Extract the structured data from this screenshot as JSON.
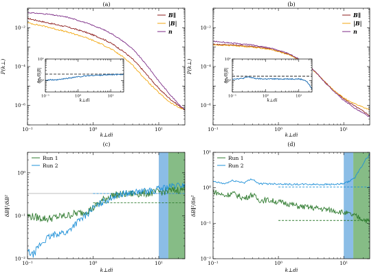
{
  "colors": {
    "red": "#8B1A1A",
    "orange": "#F2A60C",
    "purple": "#7B2A85",
    "dkgreen": "#2E7A2E",
    "ltblue": "#1E90D8",
    "inset_blue": "#1F6FB5",
    "band_blue": "#8BBDE6",
    "band_green": "#86BC86",
    "hline_gray": "#999999"
  },
  "chart_data": [
    {
      "panel": "(a)",
      "type": "line",
      "xscale": "log",
      "yscale": "log",
      "xlim": [
        0.1,
        25
      ],
      "ylim": [
        1e-07,
        0.1
      ],
      "xlabel": "k⊥di",
      "ylabel": "P(k⊥)",
      "legend": "top-right",
      "xticks": [
        "10⁻¹",
        "10⁰",
        "10¹"
      ],
      "yticks": [
        "10⁻²",
        "10⁻⁴",
        "10⁻⁶"
      ],
      "series": [
        {
          "name": "B∥",
          "color": "red",
          "x": [
            0.1,
            0.2,
            0.4,
            0.7,
            1,
            1.5,
            2,
            3,
            4,
            5,
            7,
            10,
            15,
            20,
            25
          ],
          "y": [
            0.03,
            0.018,
            0.011,
            0.0065,
            0.0042,
            0.0024,
            0.0014,
            0.00055,
            0.00024,
            0.00011,
            3e-05,
            7.5e-06,
            2.1e-06,
            1e-06,
            6e-07
          ]
        },
        {
          "name": "|B|",
          "color": "orange",
          "x": [
            0.1,
            0.2,
            0.4,
            0.7,
            1,
            1.5,
            2,
            3,
            4,
            5,
            7,
            10,
            15,
            20,
            25
          ],
          "y": [
            0.018,
            0.011,
            0.006,
            0.0035,
            0.0022,
            0.0012,
            0.0007,
            0.00028,
            0.00012,
            5e-05,
            1.5e-05,
            4.5e-06,
            1.4e-06,
            8e-07,
            6e-07
          ]
        },
        {
          "name": "n",
          "color": "purple",
          "x": [
            0.1,
            0.2,
            0.4,
            0.7,
            1,
            1.5,
            2,
            3,
            4,
            5,
            7,
            10,
            15,
            20,
            25
          ],
          "y": [
            0.06,
            0.05,
            0.035,
            0.02,
            0.013,
            0.0075,
            0.0045,
            0.0018,
            0.0008,
            0.00035,
            9e-05,
            1.8e-05,
            3.5e-06,
            1.2e-06,
            6e-07
          ]
        }
      ],
      "inset": {
        "ylabel": "δnᵢ/δ|B|",
        "xlabel": "k⊥di",
        "yticks": [
          "10¹",
          "10⁰"
        ],
        "xticks": [
          "10⁻¹",
          "10⁰",
          "10¹"
        ],
        "hline": 2.0,
        "xlim": [
          0.1,
          25
        ],
        "ylim": [
          0.3,
          10
        ],
        "x": [
          0.1,
          0.15,
          0.2,
          0.3,
          0.5,
          0.8,
          1,
          1.5,
          2,
          3,
          5,
          8,
          10,
          15,
          20,
          25
        ],
        "y": [
          1.05,
          1.1,
          1.05,
          1.15,
          1.3,
          1.45,
          1.5,
          1.6,
          1.7,
          1.75,
          1.8,
          1.85,
          1.9,
          1.9,
          1.95,
          2.0
        ]
      }
    },
    {
      "panel": "(b)",
      "type": "line",
      "xscale": "log",
      "yscale": "log",
      "xlim": [
        0.1,
        25
      ],
      "ylim": [
        1e-07,
        0.1
      ],
      "xlabel": "k⊥di",
      "ylabel": "P(k⊥)",
      "legend": "top-right",
      "xticks": [
        "10⁻¹",
        "10⁰",
        "10¹"
      ],
      "yticks": [
        "10⁻²",
        "10⁻⁴",
        "10⁻⁶"
      ],
      "series": [
        {
          "name": "B∥",
          "color": "red",
          "x": [
            0.1,
            0.2,
            0.4,
            0.7,
            1,
            1.5,
            2,
            3,
            4,
            5,
            7,
            10,
            15,
            20,
            25
          ],
          "y": [
            0.0014,
            0.0013,
            0.0011,
            0.00085,
            0.00062,
            0.0004,
            0.00025,
            0.0001,
            4e-05,
            1.8e-05,
            6e-06,
            2.2e-06,
            9e-07,
            5e-07,
            3e-07
          ]
        },
        {
          "name": "|B|",
          "color": "orange",
          "x": [
            0.1,
            0.2,
            0.4,
            0.7,
            1,
            1.5,
            2,
            3,
            4,
            5,
            7,
            10,
            15,
            20,
            25
          ],
          "y": [
            0.0013,
            0.0012,
            0.001,
            0.0008,
            0.0006,
            0.00039,
            0.00024,
            9.5e-05,
            4e-05,
            1.8e-05,
            6e-06,
            2.4e-06,
            1.2e-06,
            8e-07,
            6e-07
          ]
        },
        {
          "name": "n",
          "color": "purple",
          "x": [
            0.1,
            0.2,
            0.4,
            0.7,
            1,
            1.5,
            2,
            3,
            4,
            5,
            7,
            10,
            15,
            20,
            25
          ],
          "y": [
            0.002,
            0.0016,
            0.0013,
            0.00095,
            0.0007,
            0.00043,
            0.00026,
            0.0001,
            4e-05,
            1.7e-05,
            5.5e-06,
            1.8e-06,
            7e-07,
            4e-07,
            2.5e-07
          ]
        }
      ],
      "inset": {
        "ylabel": "δnᵢ/δ|B|",
        "xlabel": "k⊥di",
        "yticks": [
          "10¹",
          "10⁰"
        ],
        "xticks": [
          "10⁻¹",
          "10⁰",
          "10¹"
        ],
        "hline": 1.6,
        "xlim": [
          0.1,
          25
        ],
        "ylim": [
          0.3,
          10
        ],
        "x": [
          0.1,
          0.2,
          0.3,
          0.5,
          0.8,
          1,
          1.5,
          2,
          3,
          5,
          8,
          10,
          12,
          15,
          18,
          20,
          22,
          25
        ],
        "y": [
          1.2,
          1.25,
          1.5,
          1.25,
          1.2,
          1.2,
          1.2,
          1.2,
          1.2,
          1.2,
          1.2,
          1.2,
          1.15,
          1.05,
          0.85,
          0.7,
          0.55,
          0.4
        ]
      }
    },
    {
      "panel": "(c)",
      "type": "line",
      "xscale": "log",
      "yscale": "log",
      "xlim": [
        0.1,
        25
      ],
      "ylim": [
        0.01,
        3
      ],
      "xlabel": "k⊥di",
      "ylabel": "δB∥²/δB²",
      "legend": "top-left",
      "xticks": [
        "10⁻¹",
        "10⁰",
        "10¹"
      ],
      "yticks": [
        "10⁰",
        "10⁻¹",
        "10⁻²"
      ],
      "bands": [
        {
          "color": "band_blue",
          "x0": 10,
          "x1": 14
        },
        {
          "color": "band_green",
          "x0": 14,
          "x1": 25
        }
      ],
      "hlines": [
        {
          "y": 0.33,
          "color": "hline_gray",
          "style": "solid",
          "x0": 0.1,
          "x1": 25
        },
        {
          "y": 0.33,
          "color": "ltblue",
          "style": "dashed",
          "x0": 1,
          "x1": 25
        },
        {
          "y": 0.2,
          "color": "dkgreen",
          "style": "dashed",
          "x0": 1,
          "x1": 25
        }
      ],
      "series": [
        {
          "name": "Run 1",
          "color": "dkgreen",
          "x": [
            0.1,
            0.15,
            0.2,
            0.3,
            0.4,
            0.5,
            0.7,
            1,
            1.5,
            2,
            3,
            5,
            8,
            10,
            15,
            20,
            25
          ],
          "y": [
            0.1,
            0.09,
            0.085,
            0.095,
            0.1,
            0.11,
            0.12,
            0.15,
            0.25,
            0.3,
            0.32,
            0.33,
            0.34,
            0.36,
            0.38,
            0.4,
            0.42
          ]
        },
        {
          "name": "Run 2",
          "color": "ltblue",
          "x": [
            0.1,
            0.12,
            0.15,
            0.2,
            0.3,
            0.4,
            0.5,
            0.7,
            1,
            1.5,
            2,
            3,
            5,
            8,
            10,
            15,
            20,
            25
          ],
          "y": [
            0.015,
            0.012,
            0.02,
            0.03,
            0.04,
            0.04,
            0.06,
            0.09,
            0.15,
            0.22,
            0.28,
            0.33,
            0.36,
            0.38,
            0.42,
            0.48,
            0.5,
            0.52
          ]
        }
      ]
    },
    {
      "panel": "(d)",
      "type": "line",
      "xscale": "log",
      "yscale": "log",
      "xlim": [
        0.1,
        25
      ],
      "ylim": [
        0.01,
        10
      ],
      "xlabel": "k⊥di",
      "ylabel": "δB∥²/δn²",
      "legend": "top-left",
      "xticks": [
        "10⁻¹",
        "10⁰",
        "10¹"
      ],
      "yticks": [
        "10¹",
        "10⁰",
        "10⁻¹",
        "10⁻²"
      ],
      "bands": [
        {
          "color": "band_blue",
          "x0": 10,
          "x1": 14
        },
        {
          "color": "band_green",
          "x0": 14,
          "x1": 25
        }
      ],
      "hlines": [
        {
          "y": 1.05,
          "color": "ltblue",
          "style": "dashed",
          "x0": 1,
          "x1": 25
        },
        {
          "y": 0.12,
          "color": "dkgreen",
          "style": "dashed",
          "x0": 1,
          "x1": 25
        }
      ],
      "series": [
        {
          "name": "Run 1",
          "color": "dkgreen",
          "x": [
            0.1,
            0.15,
            0.2,
            0.3,
            0.4,
            0.5,
            0.7,
            1,
            1.5,
            2,
            3,
            5,
            8,
            10,
            15,
            20,
            25
          ],
          "y": [
            0.8,
            0.6,
            0.7,
            0.5,
            0.65,
            0.45,
            0.45,
            0.4,
            0.35,
            0.3,
            0.28,
            0.25,
            0.22,
            0.2,
            0.16,
            0.13,
            0.11
          ]
        },
        {
          "name": "Run 2",
          "color": "ltblue",
          "x": [
            0.1,
            0.15,
            0.2,
            0.3,
            0.4,
            0.5,
            0.7,
            1,
            1.5,
            2,
            3,
            5,
            8,
            10,
            12,
            15,
            18,
            20,
            25
          ],
          "y": [
            1.5,
            1.3,
            1.6,
            1.4,
            1.8,
            1.3,
            1.3,
            1.3,
            1.25,
            1.25,
            1.25,
            1.25,
            1.25,
            1.3,
            1.5,
            2,
            3.5,
            5,
            9
          ]
        }
      ]
    }
  ]
}
